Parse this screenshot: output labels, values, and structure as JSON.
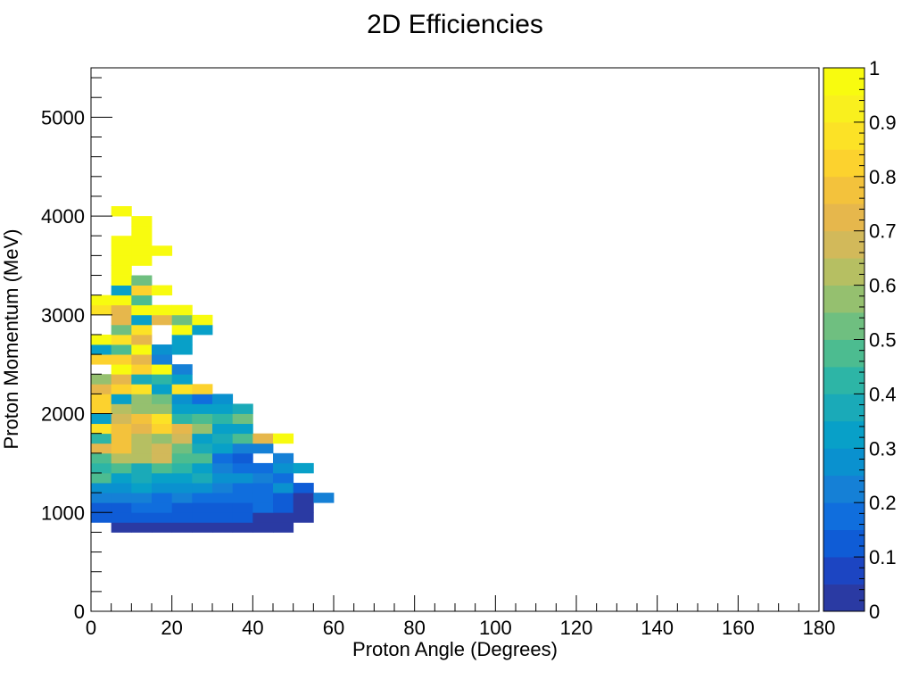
{
  "chart_data": {
    "type": "heatmap",
    "title": "2D Efficiencies",
    "xlabel": "Proton Angle (Degrees)",
    "ylabel": "Proton Momentum (MeV)",
    "xlim": [
      0,
      180
    ],
    "ylim": [
      0,
      5500
    ],
    "zlim": [
      0,
      1
    ],
    "x_bin_width": 5,
    "y_bin_width": 100,
    "x_ticks": [
      "0",
      "20",
      "40",
      "60",
      "80",
      "100",
      "120",
      "140",
      "160",
      "180"
    ],
    "y_ticks": [
      "0",
      "1000",
      "2000",
      "3000",
      "4000",
      "5000"
    ],
    "z_ticks": [
      "0",
      "0.1",
      "0.2",
      "0.3",
      "0.4",
      "0.5",
      "0.6",
      "0.7",
      "0.8",
      "0.9",
      "1"
    ],
    "colormap": [
      "#2a3aa3",
      "#1c45c2",
      "#0f5cd6",
      "#106edd",
      "#1580d6",
      "#0a91cf",
      "#08a0c8",
      "#1aaab8",
      "#2db5a6",
      "#4cbc90",
      "#6fbf80",
      "#95c06f",
      "#b6bf62",
      "#d2b95a",
      "#e6b74c",
      "#f3c23c",
      "#fcd22e",
      "#fce226",
      "#f9f01e",
      "#f8fb0f"
    ],
    "grid": false,
    "cells": [
      [
        5,
        800,
        0.02
      ],
      [
        10,
        800,
        0.02
      ],
      [
        15,
        800,
        0.02
      ],
      [
        20,
        800,
        0.02
      ],
      [
        25,
        800,
        0.02
      ],
      [
        30,
        800,
        0.02
      ],
      [
        35,
        800,
        0.02
      ],
      [
        40,
        800,
        0.02
      ],
      [
        45,
        800,
        0.02
      ],
      [
        0,
        900,
        0.1
      ],
      [
        5,
        900,
        0.1
      ],
      [
        10,
        900,
        0.1
      ],
      [
        15,
        900,
        0.1
      ],
      [
        20,
        900,
        0.1
      ],
      [
        25,
        900,
        0.1
      ],
      [
        30,
        900,
        0.1
      ],
      [
        35,
        900,
        0.1
      ],
      [
        40,
        900,
        0.02
      ],
      [
        45,
        900,
        0.02
      ],
      [
        50,
        900,
        0.02
      ],
      [
        0,
        1000,
        0.1
      ],
      [
        5,
        1000,
        0.1
      ],
      [
        10,
        1000,
        0.15
      ],
      [
        15,
        1000,
        0.15
      ],
      [
        20,
        1000,
        0.1
      ],
      [
        25,
        1000,
        0.1
      ],
      [
        30,
        1000,
        0.1
      ],
      [
        35,
        1000,
        0.1
      ],
      [
        40,
        1000,
        0.15
      ],
      [
        45,
        1000,
        0.1
      ],
      [
        50,
        1000,
        0.02
      ],
      [
        0,
        1100,
        0.2
      ],
      [
        5,
        1100,
        0.2
      ],
      [
        10,
        1100,
        0.2
      ],
      [
        15,
        1100,
        0.15
      ],
      [
        20,
        1100,
        0.2
      ],
      [
        25,
        1100,
        0.15
      ],
      [
        30,
        1100,
        0.15
      ],
      [
        35,
        1100,
        0.15
      ],
      [
        40,
        1100,
        0.15
      ],
      [
        45,
        1100,
        0.1
      ],
      [
        50,
        1100,
        0.02
      ],
      [
        55,
        1100,
        0.2
      ],
      [
        0,
        1200,
        0.25
      ],
      [
        5,
        1200,
        0.25
      ],
      [
        10,
        1200,
        0.3
      ],
      [
        15,
        1200,
        0.25
      ],
      [
        20,
        1200,
        0.25
      ],
      [
        25,
        1200,
        0.25
      ],
      [
        30,
        1200,
        0.2
      ],
      [
        35,
        1200,
        0.15
      ],
      [
        40,
        1200,
        0.15
      ],
      [
        45,
        1200,
        0.25
      ],
      [
        50,
        1200,
        0.1
      ],
      [
        0,
        1300,
        0.45
      ],
      [
        5,
        1300,
        0.3
      ],
      [
        10,
        1300,
        0.35
      ],
      [
        15,
        1300,
        0.3
      ],
      [
        20,
        1300,
        0.3
      ],
      [
        25,
        1300,
        0.35
      ],
      [
        30,
        1300,
        0.25
      ],
      [
        35,
        1300,
        0.25
      ],
      [
        40,
        1300,
        0.2
      ],
      [
        45,
        1300,
        0.15
      ],
      [
        0,
        1400,
        0.4
      ],
      [
        5,
        1400,
        0.45
      ],
      [
        10,
        1400,
        0.35
      ],
      [
        15,
        1400,
        0.45
      ],
      [
        20,
        1400,
        0.4
      ],
      [
        25,
        1400,
        0.3
      ],
      [
        30,
        1400,
        0.2
      ],
      [
        35,
        1400,
        0.15
      ],
      [
        40,
        1400,
        0.15
      ],
      [
        45,
        1400,
        0.25
      ],
      [
        50,
        1400,
        0.3
      ],
      [
        0,
        1500,
        0.45
      ],
      [
        5,
        1500,
        0.6
      ],
      [
        10,
        1500,
        0.6
      ],
      [
        15,
        1500,
        0.65
      ],
      [
        20,
        1500,
        0.45
      ],
      [
        25,
        1500,
        0.45
      ],
      [
        30,
        1500,
        0.15
      ],
      [
        35,
        1500,
        0.1
      ],
      [
        45,
        1500,
        0.2
      ],
      [
        0,
        1600,
        0.7
      ],
      [
        5,
        1600,
        0.75
      ],
      [
        10,
        1600,
        0.6
      ],
      [
        15,
        1600,
        0.65
      ],
      [
        20,
        1600,
        0.5
      ],
      [
        25,
        1600,
        0.35
      ],
      [
        30,
        1600,
        0.3
      ],
      [
        35,
        1600,
        0.2
      ],
      [
        40,
        1600,
        0.2
      ],
      [
        0,
        1700,
        0.4
      ],
      [
        5,
        1700,
        0.75
      ],
      [
        10,
        1700,
        0.6
      ],
      [
        15,
        1700,
        0.55
      ],
      [
        20,
        1700,
        0.65
      ],
      [
        25,
        1700,
        0.3
      ],
      [
        30,
        1700,
        0.35
      ],
      [
        35,
        1700,
        0.45
      ],
      [
        40,
        1700,
        0.7
      ],
      [
        45,
        1700,
        0.95
      ],
      [
        0,
        1800,
        0.85
      ],
      [
        5,
        1800,
        0.75
      ],
      [
        10,
        1800,
        0.7
      ],
      [
        15,
        1800,
        0.8
      ],
      [
        20,
        1800,
        0.7
      ],
      [
        25,
        1800,
        0.55
      ],
      [
        30,
        1800,
        0.3
      ],
      [
        35,
        1800,
        0.3
      ],
      [
        0,
        1900,
        0.3
      ],
      [
        5,
        1900,
        0.65
      ],
      [
        10,
        1900,
        0.75
      ],
      [
        15,
        1900,
        0.85
      ],
      [
        20,
        1900,
        0.4
      ],
      [
        25,
        1900,
        0.45
      ],
      [
        30,
        1900,
        0.4
      ],
      [
        35,
        1900,
        0.5
      ],
      [
        0,
        2000,
        0.8
      ],
      [
        5,
        2000,
        0.6
      ],
      [
        10,
        2000,
        0.55
      ],
      [
        15,
        2000,
        0.55
      ],
      [
        20,
        2000,
        0.3
      ],
      [
        25,
        2000,
        0.3
      ],
      [
        30,
        2000,
        0.3
      ],
      [
        35,
        2000,
        0.35
      ],
      [
        0,
        2100,
        0.8
      ],
      [
        5,
        2100,
        0.3
      ],
      [
        10,
        2100,
        0.55
      ],
      [
        15,
        2100,
        0.5
      ],
      [
        20,
        2100,
        0.25
      ],
      [
        25,
        2100,
        0.15
      ],
      [
        30,
        2100,
        0.25
      ],
      [
        0,
        2200,
        0.7
      ],
      [
        5,
        2200,
        0.8
      ],
      [
        10,
        2200,
        0.85
      ],
      [
        15,
        2200,
        0.3
      ],
      [
        20,
        2200,
        0.85
      ],
      [
        25,
        2200,
        0.8
      ],
      [
        0,
        2300,
        0.55
      ],
      [
        5,
        2300,
        0.7
      ],
      [
        10,
        2300,
        0.35
      ],
      [
        15,
        2300,
        0.4
      ],
      [
        20,
        2300,
        0.3
      ],
      [
        5,
        2400,
        0.95
      ],
      [
        10,
        2400,
        0.8
      ],
      [
        15,
        2400,
        0.95
      ],
      [
        20,
        2400,
        0.2
      ],
      [
        0,
        2500,
        0.8
      ],
      [
        5,
        2500,
        0.8
      ],
      [
        10,
        2500,
        0.7
      ],
      [
        15,
        2500,
        0.2
      ],
      [
        0,
        2600,
        0.3
      ],
      [
        5,
        2600,
        0.45
      ],
      [
        10,
        2600,
        0.95
      ],
      [
        15,
        2600,
        0.25
      ],
      [
        20,
        2600,
        0.3
      ],
      [
        0,
        2700,
        0.95
      ],
      [
        5,
        2700,
        0.85
      ],
      [
        10,
        2700,
        0.7
      ],
      [
        20,
        2700,
        0.3
      ],
      [
        5,
        2800,
        0.5
      ],
      [
        10,
        2800,
        0.85
      ],
      [
        20,
        2800,
        0.95
      ],
      [
        25,
        2800,
        0.3
      ],
      [
        5,
        2900,
        0.7
      ],
      [
        10,
        2900,
        0.3
      ],
      [
        15,
        2900,
        0.7
      ],
      [
        20,
        2900,
        0.5
      ],
      [
        25,
        2900,
        0.95
      ],
      [
        0,
        3000,
        0.85
      ],
      [
        5,
        3000,
        0.7
      ],
      [
        10,
        3000,
        0.95
      ],
      [
        15,
        3000,
        0.95
      ],
      [
        20,
        3000,
        0.95
      ],
      [
        0,
        3100,
        0.95
      ],
      [
        5,
        3100,
        0.95
      ],
      [
        10,
        3100,
        0.45
      ],
      [
        5,
        3200,
        0.3
      ],
      [
        10,
        3200,
        0.8
      ],
      [
        15,
        3200,
        0.95
      ],
      [
        5,
        3300,
        0.95
      ],
      [
        10,
        3300,
        0.5
      ],
      [
        5,
        3400,
        0.95
      ],
      [
        5,
        3500,
        0.95
      ],
      [
        10,
        3500,
        0.95
      ],
      [
        5,
        3600,
        0.95
      ],
      [
        10,
        3600,
        0.95
      ],
      [
        15,
        3600,
        0.95
      ],
      [
        5,
        3700,
        0.95
      ],
      [
        10,
        3700,
        0.95
      ],
      [
        10,
        3800,
        0.95
      ],
      [
        10,
        3900,
        0.95
      ],
      [
        5,
        4000,
        0.95
      ]
    ]
  }
}
